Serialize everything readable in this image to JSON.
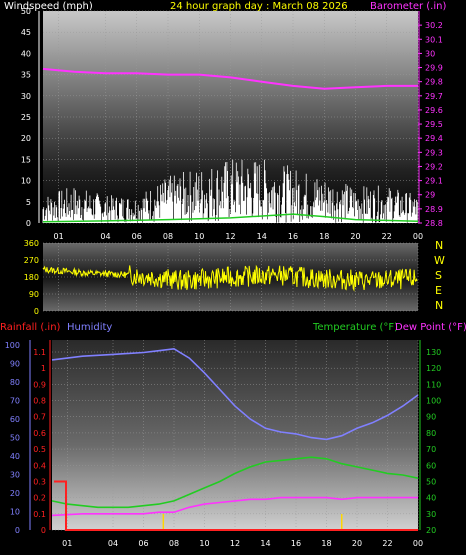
{
  "title": "24 hour graph day : March 08 2026",
  "colors": {
    "background": "#000000",
    "title": "#ffff00",
    "white": "#ffffff",
    "barometer": "#ff33ff",
    "wind_dir": "#ffff00",
    "rain": "#ff2020",
    "humidity": "#8080ff",
    "temperature": "#22cc22",
    "dewpoint": "#ff33ff",
    "hour_marker": "#ffd700",
    "grid": "#9a9a9a"
  },
  "chart_data": [
    {
      "type": "line",
      "title": "24 hour graph day : March 08 2026",
      "ylabel": "Windspeed (mph)",
      "y2label": "Barometer (.in)",
      "ylim": [
        0,
        50
      ],
      "y2lim": [
        28.8,
        30.3
      ],
      "xlim": [
        0,
        24
      ],
      "yticks": [
        "0",
        "5",
        "10",
        "15",
        "20",
        "25",
        "30",
        "35",
        "40",
        "45",
        "50"
      ],
      "y2ticks": [
        "28.8",
        "28.9",
        "29",
        "29.1",
        "29.2",
        "29.3",
        "29.4",
        "29.5",
        "29.6",
        "29.7",
        "29.8",
        "29.9",
        "30",
        "30.1",
        "30.2"
      ],
      "xticks": [
        "01",
        "04",
        "06",
        "08",
        "10",
        "12",
        "14",
        "16",
        "18",
        "20",
        "22",
        "00"
      ],
      "series": [
        {
          "name": "Windspeed",
          "axis": "left",
          "x": [
            0,
            2,
            4,
            6,
            8,
            10,
            12,
            14,
            16,
            18,
            20,
            22,
            24
          ],
          "values": [
            3,
            4,
            3,
            3,
            5,
            6,
            7,
            7,
            6,
            5,
            4,
            4,
            3
          ]
        },
        {
          "name": "Windspeed (avg)",
          "axis": "left",
          "x": [
            0,
            4,
            8,
            12,
            16,
            18,
            20,
            24
          ],
          "values": [
            0.3,
            0.5,
            0.8,
            1.2,
            2.1,
            1.5,
            0.8,
            0.4
          ]
        },
        {
          "name": "Barometer",
          "axis": "right",
          "x": [
            0,
            2,
            4,
            6,
            8,
            10,
            12,
            14,
            16,
            18,
            20,
            22,
            24
          ],
          "values": [
            29.89,
            29.87,
            29.86,
            29.86,
            29.85,
            29.85,
            29.83,
            29.8,
            29.77,
            29.75,
            29.76,
            29.77,
            29.77
          ]
        }
      ]
    },
    {
      "type": "scatter",
      "ylim": [
        0,
        360
      ],
      "xlim": [
        0,
        24
      ],
      "yticks": [
        "0",
        "90",
        "180",
        "270",
        "360"
      ],
      "direction_labels": [
        "N",
        "W",
        "S",
        "E",
        "N"
      ],
      "series": [
        {
          "name": "Wind direction",
          "x": [
            0,
            3,
            6,
            9,
            12,
            15,
            18,
            21,
            24
          ],
          "values": [
            220,
            200,
            190,
            160,
            180,
            190,
            170,
            160,
            170
          ]
        }
      ]
    },
    {
      "type": "line",
      "labels": {
        "rain": "Rainfall (.in)",
        "humidity": "Humidity",
        "temperature": "Temperature (°F)",
        "dewpoint": "Dew Point (°F)"
      },
      "xlim": [
        0,
        24
      ],
      "humidity_ticks": [
        "0",
        "10",
        "20",
        "30",
        "40",
        "50",
        "60",
        "70",
        "80",
        "90",
        "100"
      ],
      "rain_ticks": [
        "0",
        "0.1",
        "0.2",
        "0.3",
        "0.4",
        "0.5",
        "0.6",
        "0.7",
        "0.8",
        "0.9",
        "1",
        "1.1"
      ],
      "temp_ticks": [
        "20",
        "30",
        "40",
        "50",
        "60",
        "70",
        "80",
        "90",
        "100",
        "110",
        "120",
        "130"
      ],
      "xticks": [
        "01",
        "04",
        "06",
        "08",
        "10",
        "12",
        "14",
        "16",
        "18",
        "20",
        "22",
        "00"
      ],
      "series": [
        {
          "name": "Humidity",
          "axis": "humidity",
          "x": [
            0,
            2,
            4,
            6,
            7,
            8,
            9,
            10,
            11,
            12,
            13,
            14,
            15,
            16,
            17,
            18,
            19,
            20,
            21,
            22,
            23,
            24
          ],
          "values": [
            92,
            94,
            95,
            96,
            97,
            98,
            93,
            85,
            76,
            67,
            60,
            55,
            53,
            52,
            50,
            49,
            51,
            55,
            58,
            62,
            67,
            73
          ]
        },
        {
          "name": "Temperature",
          "axis": "temp",
          "x": [
            0,
            1,
            2,
            3,
            4,
            5,
            6,
            7,
            8,
            9,
            10,
            11,
            12,
            13,
            14,
            15,
            16,
            17,
            18,
            19,
            20,
            21,
            22,
            23,
            24
          ],
          "values": [
            38,
            36,
            35,
            34,
            34,
            34,
            35,
            36,
            38,
            42,
            46,
            50,
            55,
            59,
            62,
            63,
            64,
            65,
            64,
            61,
            59,
            57,
            55,
            54,
            52
          ]
        },
        {
          "name": "Dew Point",
          "axis": "temp",
          "x": [
            0,
            2,
            4,
            6,
            7,
            8,
            9,
            10,
            11,
            12,
            13,
            14,
            15,
            16,
            17,
            18,
            19,
            20,
            21,
            22,
            23,
            24
          ],
          "values": [
            29,
            30,
            30,
            30,
            31,
            31,
            34,
            36,
            37,
            38,
            39,
            39,
            40,
            40,
            40,
            40,
            39,
            40,
            40,
            40,
            40,
            40
          ]
        },
        {
          "name": "Rainfall",
          "axis": "rain",
          "x": [
            0,
            0.6,
            0.6,
            24
          ],
          "values": [
            0.3,
            0.3,
            0.0,
            0.0
          ]
        }
      ],
      "hour_markers": [
        7.3,
        19
      ]
    }
  ]
}
